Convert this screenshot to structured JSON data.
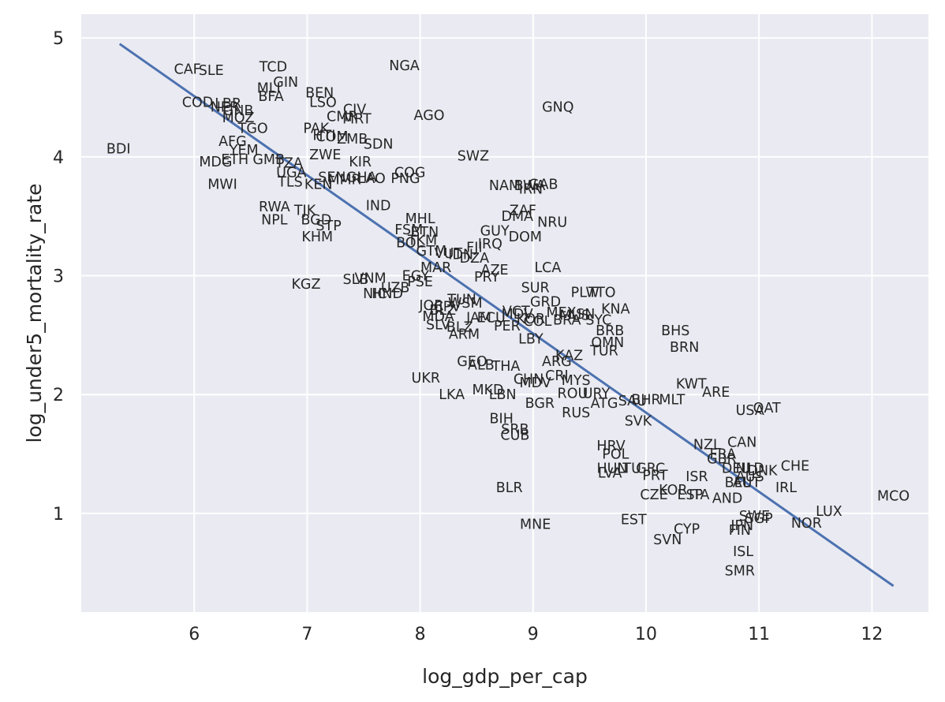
{
  "chart_data": {
    "type": "scatter",
    "title": "",
    "xlabel": "log_gdp_per_cap",
    "ylabel": "log_under5_mortality_rate",
    "xlim": [
      5.0,
      12.5
    ],
    "ylim": [
      0.17,
      5.2
    ],
    "x_ticks": [
      6,
      7,
      8,
      9,
      10,
      11,
      12
    ],
    "y_ticks": [
      1,
      2,
      3,
      4,
      5
    ],
    "grid": true,
    "legend": "none",
    "background_color": "#eaeaf2",
    "grid_color": "#ffffff",
    "line_color": "#4c72b0",
    "marker": "country-code-text",
    "fit_line": {
      "x": [
        5.34,
        12.19
      ],
      "y": [
        4.95,
        0.39
      ]
    },
    "points": [
      {
        "label": "CAF",
        "x": 5.94,
        "y": 4.74
      },
      {
        "label": "SLE",
        "x": 6.15,
        "y": 4.73
      },
      {
        "label": "TCD",
        "x": 6.7,
        "y": 4.76
      },
      {
        "label": "NGA",
        "x": 7.86,
        "y": 4.77
      },
      {
        "label": "MLI",
        "x": 6.66,
        "y": 4.58
      },
      {
        "label": "GIN",
        "x": 6.81,
        "y": 4.63
      },
      {
        "label": "BFA",
        "x": 6.68,
        "y": 4.51
      },
      {
        "label": "BEN",
        "x": 7.11,
        "y": 4.54
      },
      {
        "label": "LSO",
        "x": 7.14,
        "y": 4.46
      },
      {
        "label": "COD",
        "x": 6.03,
        "y": 4.46
      },
      {
        "label": "LBR",
        "x": 6.3,
        "y": 4.45
      },
      {
        "label": "NER",
        "x": 6.27,
        "y": 4.42
      },
      {
        "label": "GNB",
        "x": 6.39,
        "y": 4.39
      },
      {
        "label": "MOZ",
        "x": 6.39,
        "y": 4.33
      },
      {
        "label": "CIV",
        "x": 7.42,
        "y": 4.4
      },
      {
        "label": "CMR",
        "x": 7.31,
        "y": 4.34
      },
      {
        "label": "MRT",
        "x": 7.44,
        "y": 4.32
      },
      {
        "label": "AGO",
        "x": 8.08,
        "y": 4.35
      },
      {
        "label": "GNQ",
        "x": 9.22,
        "y": 4.42
      },
      {
        "label": "TGO",
        "x": 6.52,
        "y": 4.24
      },
      {
        "label": "PAK",
        "x": 7.08,
        "y": 4.24
      },
      {
        "label": "HTI",
        "x": 7.15,
        "y": 4.18
      },
      {
        "label": "COM",
        "x": 7.22,
        "y": 4.17
      },
      {
        "label": "ZMB",
        "x": 7.4,
        "y": 4.15
      },
      {
        "label": "SDN",
        "x": 7.63,
        "y": 4.11
      },
      {
        "label": "AFG",
        "x": 6.34,
        "y": 4.13
      },
      {
        "label": "YEM",
        "x": 6.44,
        "y": 4.06
      },
      {
        "label": "BDI",
        "x": 5.33,
        "y": 4.07
      },
      {
        "label": "ZWE",
        "x": 7.16,
        "y": 4.02
      },
      {
        "label": "SWZ",
        "x": 8.47,
        "y": 4.01
      },
      {
        "label": "ETH",
        "x": 6.36,
        "y": 3.98
      },
      {
        "label": "MDG",
        "x": 6.19,
        "y": 3.96
      },
      {
        "label": "GMB",
        "x": 6.66,
        "y": 3.98
      },
      {
        "label": "TZA",
        "x": 6.84,
        "y": 3.95
      },
      {
        "label": "KIR",
        "x": 7.47,
        "y": 3.96
      },
      {
        "label": "UGA",
        "x": 6.86,
        "y": 3.87
      },
      {
        "label": "COG",
        "x": 7.91,
        "y": 3.87
      },
      {
        "label": "SEN",
        "x": 7.22,
        "y": 3.83
      },
      {
        "label": "MMR",
        "x": 7.33,
        "y": 3.81
      },
      {
        "label": "GHA",
        "x": 7.48,
        "y": 3.83
      },
      {
        "label": "LAO",
        "x": 7.57,
        "y": 3.82
      },
      {
        "label": "PNG",
        "x": 7.87,
        "y": 3.82
      },
      {
        "label": "TLS",
        "x": 6.85,
        "y": 3.79
      },
      {
        "label": "KEN",
        "x": 7.1,
        "y": 3.77
      },
      {
        "label": "MWI",
        "x": 6.25,
        "y": 3.77
      },
      {
        "label": "NAM",
        "x": 8.75,
        "y": 3.76
      },
      {
        "label": "BWA",
        "x": 8.97,
        "y": 3.76
      },
      {
        "label": "GAB",
        "x": 9.09,
        "y": 3.77
      },
      {
        "label": "IRN",
        "x": 8.98,
        "y": 3.73
      },
      {
        "label": "RWA",
        "x": 6.71,
        "y": 3.58
      },
      {
        "label": "TJK",
        "x": 6.98,
        "y": 3.55
      },
      {
        "label": "IND",
        "x": 7.63,
        "y": 3.59
      },
      {
        "label": "ZAF",
        "x": 8.91,
        "y": 3.55
      },
      {
        "label": "DMA",
        "x": 8.86,
        "y": 3.5
      },
      {
        "label": "NRU",
        "x": 9.17,
        "y": 3.45
      },
      {
        "label": "MHL",
        "x": 8.0,
        "y": 3.48
      },
      {
        "label": "NPL",
        "x": 6.71,
        "y": 3.47
      },
      {
        "label": "BGD",
        "x": 7.08,
        "y": 3.47
      },
      {
        "label": "STP",
        "x": 7.19,
        "y": 3.42
      },
      {
        "label": "FSM",
        "x": 7.9,
        "y": 3.39
      },
      {
        "label": "BTN",
        "x": 8.04,
        "y": 3.37
      },
      {
        "label": "GUY",
        "x": 8.66,
        "y": 3.38
      },
      {
        "label": "DOM",
        "x": 8.93,
        "y": 3.33
      },
      {
        "label": "KHM",
        "x": 7.09,
        "y": 3.33
      },
      {
        "label": "BOL",
        "x": 7.91,
        "y": 3.28
      },
      {
        "label": "TKM",
        "x": 8.02,
        "y": 3.3
      },
      {
        "label": "IRQ",
        "x": 8.62,
        "y": 3.27
      },
      {
        "label": "FJI",
        "x": 8.48,
        "y": 3.24
      },
      {
        "label": "GTM",
        "x": 8.1,
        "y": 3.21
      },
      {
        "label": "VUT",
        "x": 8.25,
        "y": 3.19
      },
      {
        "label": "IDN",
        "x": 8.36,
        "y": 3.18
      },
      {
        "label": "DZA",
        "x": 8.48,
        "y": 3.15
      },
      {
        "label": "LCA",
        "x": 9.13,
        "y": 3.07
      },
      {
        "label": "MAR",
        "x": 8.14,
        "y": 3.07
      },
      {
        "label": "AZE",
        "x": 8.66,
        "y": 3.05
      },
      {
        "label": "EGY",
        "x": 7.96,
        "y": 3.0
      },
      {
        "label": "PSE",
        "x": 8.0,
        "y": 2.95
      },
      {
        "label": "PRY",
        "x": 8.59,
        "y": 2.99
      },
      {
        "label": "SLB",
        "x": 7.43,
        "y": 2.97
      },
      {
        "label": "VNM",
        "x": 7.56,
        "y": 2.98
      },
      {
        "label": "KGZ",
        "x": 6.99,
        "y": 2.93
      },
      {
        "label": "UZB",
        "x": 7.78,
        "y": 2.9
      },
      {
        "label": "NIC",
        "x": 7.6,
        "y": 2.85
      },
      {
        "label": "HND",
        "x": 7.71,
        "y": 2.85
      },
      {
        "label": "SUR",
        "x": 9.02,
        "y": 2.9
      },
      {
        "label": "PLW",
        "x": 9.46,
        "y": 2.86
      },
      {
        "label": "TTO",
        "x": 9.61,
        "y": 2.86
      },
      {
        "label": "GRD",
        "x": 9.11,
        "y": 2.78
      },
      {
        "label": "KNA",
        "x": 9.73,
        "y": 2.72
      },
      {
        "label": "TUN",
        "x": 8.37,
        "y": 2.8
      },
      {
        "label": "WSM",
        "x": 8.4,
        "y": 2.77
      },
      {
        "label": "JOR",
        "x": 8.1,
        "y": 2.75
      },
      {
        "label": "CPV",
        "x": 8.24,
        "y": 2.74
      },
      {
        "label": "BLZ",
        "x": 8.2,
        "y": 2.71
      },
      {
        "label": "MDA",
        "x": 8.16,
        "y": 2.66
      },
      {
        "label": "JAM",
        "x": 8.52,
        "y": 2.65
      },
      {
        "label": "ECU",
        "x": 8.63,
        "y": 2.65
      },
      {
        "label": "MDV",
        "x": 8.86,
        "y": 2.68
      },
      {
        "label": "VCT",
        "x": 8.85,
        "y": 2.7
      },
      {
        "label": "KOR",
        "x": 8.98,
        "y": 2.64
      },
      {
        "label": "COL",
        "x": 9.04,
        "y": 2.62
      },
      {
        "label": "MEX",
        "x": 9.25,
        "y": 2.69
      },
      {
        "label": "BRA",
        "x": 9.3,
        "y": 2.63
      },
      {
        "label": "MUS",
        "x": 9.37,
        "y": 2.67
      },
      {
        "label": "LSN",
        "x": 9.43,
        "y": 2.68
      },
      {
        "label": "SYC",
        "x": 9.58,
        "y": 2.63
      },
      {
        "label": "SLV",
        "x": 8.16,
        "y": 2.59
      },
      {
        "label": "BLZ",
        "x": 8.35,
        "y": 2.57
      },
      {
        "label": "PER",
        "x": 8.77,
        "y": 2.58
      },
      {
        "label": "BHS",
        "x": 10.26,
        "y": 2.54
      },
      {
        "label": "BRB",
        "x": 9.68,
        "y": 2.54
      },
      {
        "label": "ARM",
        "x": 8.39,
        "y": 2.51
      },
      {
        "label": "LBY",
        "x": 8.98,
        "y": 2.47
      },
      {
        "label": "OMN",
        "x": 9.66,
        "y": 2.44
      },
      {
        "label": "BRN",
        "x": 10.34,
        "y": 2.4
      },
      {
        "label": "TUR",
        "x": 9.63,
        "y": 2.37
      },
      {
        "label": "KAZ",
        "x": 9.32,
        "y": 2.33
      },
      {
        "label": "ARG",
        "x": 9.21,
        "y": 2.28
      },
      {
        "label": "GEO",
        "x": 8.46,
        "y": 2.28
      },
      {
        "label": "ALB",
        "x": 8.54,
        "y": 2.25
      },
      {
        "label": "THA",
        "x": 8.76,
        "y": 2.24
      },
      {
        "label": "CRI",
        "x": 9.21,
        "y": 2.16
      },
      {
        "label": "UKR",
        "x": 8.05,
        "y": 2.14
      },
      {
        "label": "CHN",
        "x": 8.96,
        "y": 2.13
      },
      {
        "label": "MDV",
        "x": 9.02,
        "y": 2.1
      },
      {
        "label": "MYS",
        "x": 9.38,
        "y": 2.12
      },
      {
        "label": "KWT",
        "x": 10.4,
        "y": 2.09
      },
      {
        "label": "ARE",
        "x": 10.62,
        "y": 2.02
      },
      {
        "label": "MKD",
        "x": 8.6,
        "y": 2.04
      },
      {
        "label": "LBN",
        "x": 8.73,
        "y": 2.0
      },
      {
        "label": "LKA",
        "x": 8.28,
        "y": 2.0
      },
      {
        "label": "ROU",
        "x": 9.35,
        "y": 2.01
      },
      {
        "label": "URY",
        "x": 9.56,
        "y": 2.01
      },
      {
        "label": "ATG",
        "x": 9.63,
        "y": 1.93
      },
      {
        "label": "SAU",
        "x": 9.88,
        "y": 1.95
      },
      {
        "label": "BHR",
        "x": 10.0,
        "y": 1.96
      },
      {
        "label": "MLT",
        "x": 10.23,
        "y": 1.96
      },
      {
        "label": "BGR",
        "x": 9.06,
        "y": 1.93
      },
      {
        "label": "QAT",
        "x": 11.07,
        "y": 1.89
      },
      {
        "label": "USA",
        "x": 10.92,
        "y": 1.87
      },
      {
        "label": "RUS",
        "x": 9.38,
        "y": 1.85
      },
      {
        "label": "SVK",
        "x": 9.93,
        "y": 1.78
      },
      {
        "label": "BIH",
        "x": 8.72,
        "y": 1.8
      },
      {
        "label": "SRB",
        "x": 8.84,
        "y": 1.71
      },
      {
        "label": "CUB",
        "x": 8.84,
        "y": 1.66
      },
      {
        "label": "CAN",
        "x": 10.85,
        "y": 1.6
      },
      {
        "label": "NZL",
        "x": 10.54,
        "y": 1.58
      },
      {
        "label": "HRV",
        "x": 9.69,
        "y": 1.57
      },
      {
        "label": "FRA",
        "x": 10.68,
        "y": 1.5
      },
      {
        "label": "POL",
        "x": 9.73,
        "y": 1.5
      },
      {
        "label": "GBR",
        "x": 10.67,
        "y": 1.46
      },
      {
        "label": "CHE",
        "x": 11.32,
        "y": 1.4
      },
      {
        "label": "DEU",
        "x": 10.8,
        "y": 1.38
      },
      {
        "label": "NLD",
        "x": 10.92,
        "y": 1.38
      },
      {
        "label": "DNK",
        "x": 11.03,
        "y": 1.36
      },
      {
        "label": "HUN",
        "x": 9.7,
        "y": 1.38
      },
      {
        "label": "LTU",
        "x": 9.85,
        "y": 1.38
      },
      {
        "label": "GRC",
        "x": 10.04,
        "y": 1.38
      },
      {
        "label": "LVA",
        "x": 9.68,
        "y": 1.34
      },
      {
        "label": "PRT",
        "x": 10.08,
        "y": 1.32
      },
      {
        "label": "ISR",
        "x": 10.45,
        "y": 1.31
      },
      {
        "label": "AUS",
        "x": 10.92,
        "y": 1.31
      },
      {
        "label": "BEL",
        "x": 10.81,
        "y": 1.26
      },
      {
        "label": "AUT",
        "x": 10.89,
        "y": 1.26
      },
      {
        "label": "IRL",
        "x": 11.24,
        "y": 1.22
      },
      {
        "label": "BLR",
        "x": 8.79,
        "y": 1.22
      },
      {
        "label": "KOR",
        "x": 10.24,
        "y": 1.2
      },
      {
        "label": "CZE",
        "x": 10.07,
        "y": 1.16
      },
      {
        "label": "ESP",
        "x": 10.39,
        "y": 1.16
      },
      {
        "label": "ITA",
        "x": 10.47,
        "y": 1.16
      },
      {
        "label": "AND",
        "x": 10.72,
        "y": 1.13
      },
      {
        "label": "MCO",
        "x": 12.19,
        "y": 1.15
      },
      {
        "label": "LUX",
        "x": 11.62,
        "y": 1.02
      },
      {
        "label": "SWE",
        "x": 10.96,
        "y": 0.98
      },
      {
        "label": "SGP",
        "x": 11.0,
        "y": 0.96
      },
      {
        "label": "NOR",
        "x": 11.42,
        "y": 0.92
      },
      {
        "label": "EST",
        "x": 9.89,
        "y": 0.95
      },
      {
        "label": "MNE",
        "x": 9.02,
        "y": 0.91
      },
      {
        "label": "JPN",
        "x": 10.85,
        "y": 0.9
      },
      {
        "label": "CYP",
        "x": 10.36,
        "y": 0.87
      },
      {
        "label": "FIN",
        "x": 10.83,
        "y": 0.86
      },
      {
        "label": "SVN",
        "x": 10.19,
        "y": 0.78
      },
      {
        "label": "ISL",
        "x": 10.86,
        "y": 0.68
      },
      {
        "label": "SMR",
        "x": 10.83,
        "y": 0.52
      }
    ]
  }
}
